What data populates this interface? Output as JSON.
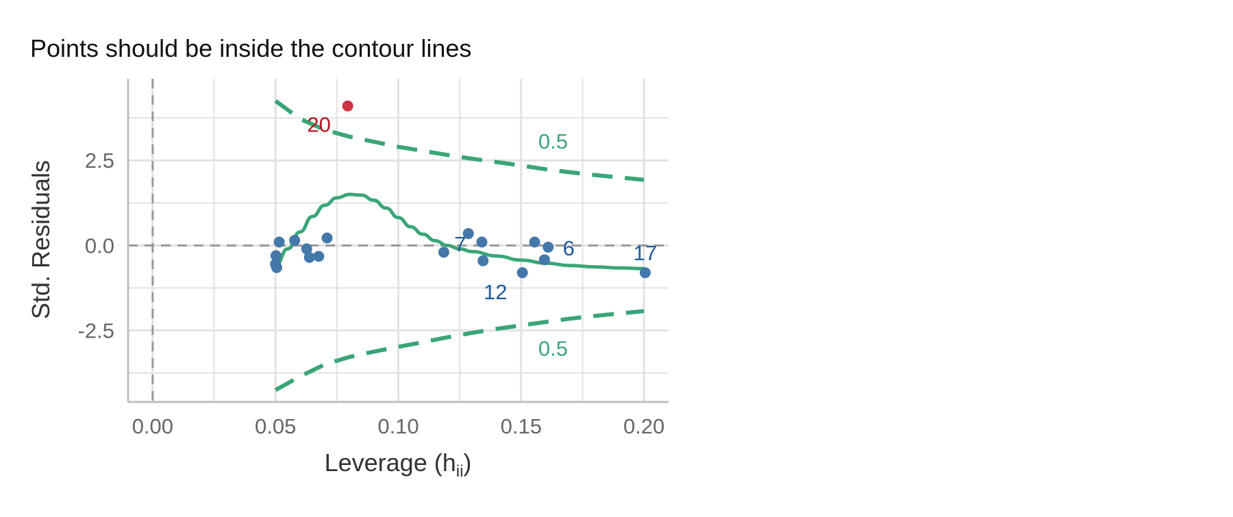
{
  "chart_data": {
    "type": "scatter",
    "title": "Points should be inside the contour lines",
    "xlabel": "Leverage (h",
    "xlabel_subscript": "ii",
    "xlabel_close": ")",
    "ylabel": "Std. Residuals",
    "xlim": [
      -0.01,
      0.21
    ],
    "ylim": [
      -4.6,
      4.9
    ],
    "x_ticks": [
      0.0,
      0.05,
      0.1,
      0.15,
      0.2
    ],
    "x_tick_labels": [
      "0.00",
      "0.05",
      "0.10",
      "0.15",
      "0.20"
    ],
    "y_ticks": [
      -2.5,
      0.0,
      2.5
    ],
    "y_tick_labels": [
      "-2.5",
      "0.0",
      "2.5"
    ],
    "grid": true,
    "reference_lines": [
      {
        "orientation": "horizontal",
        "value": 0.0,
        "style": "dashed"
      },
      {
        "orientation": "vertical",
        "value": 0.0,
        "style": "dashed"
      }
    ],
    "points": [
      {
        "x": 0.0794,
        "y": 4.1,
        "label": "20",
        "influential": true
      },
      {
        "x": 0.0515,
        "y": 0.1
      },
      {
        "x": 0.0502,
        "y": -0.3
      },
      {
        "x": 0.05,
        "y": -0.55
      },
      {
        "x": 0.0505,
        "y": -0.65
      },
      {
        "x": 0.0578,
        "y": 0.15
      },
      {
        "x": 0.0627,
        "y": -0.1
      },
      {
        "x": 0.0638,
        "y": -0.35
      },
      {
        "x": 0.0676,
        "y": -0.32
      },
      {
        "x": 0.071,
        "y": 0.22
      },
      {
        "x": 0.1185,
        "y": -0.2
      },
      {
        "x": 0.1285,
        "y": 0.35,
        "label": "7"
      },
      {
        "x": 0.134,
        "y": 0.1
      },
      {
        "x": 0.1345,
        "y": -0.45,
        "label": "12"
      },
      {
        "x": 0.1505,
        "y": -0.8
      },
      {
        "x": 0.1555,
        "y": 0.1
      },
      {
        "x": 0.1595,
        "y": -0.42
      },
      {
        "x": 0.161,
        "y": -0.05,
        "label": "6"
      },
      {
        "x": 0.2005,
        "y": -0.8,
        "label": "17"
      }
    ],
    "smooth_fit": {
      "x": [
        0.05,
        0.055,
        0.06,
        0.065,
        0.07,
        0.075,
        0.08,
        0.085,
        0.09,
        0.095,
        0.1,
        0.105,
        0.11,
        0.115,
        0.12,
        0.125,
        0.13,
        0.14,
        0.15,
        0.16,
        0.17,
        0.18,
        0.19,
        0.2
      ],
      "y": [
        -0.6,
        -0.1,
        0.4,
        0.85,
        1.18,
        1.4,
        1.5,
        1.48,
        1.33,
        1.1,
        0.82,
        0.55,
        0.33,
        0.14,
        0.0,
        -0.1,
        -0.18,
        -0.31,
        -0.43,
        -0.52,
        -0.59,
        -0.63,
        -0.66,
        -0.68
      ]
    },
    "contours": [
      {
        "label": "0.5",
        "x": [
          0.05,
          0.06,
          0.07,
          0.08,
          0.09,
          0.1,
          0.11,
          0.12,
          0.13,
          0.14,
          0.15,
          0.16,
          0.17,
          0.18,
          0.19,
          0.2
        ],
        "y": [
          4.25,
          3.72,
          3.4,
          3.2,
          3.05,
          2.9,
          2.78,
          2.66,
          2.55,
          2.45,
          2.35,
          2.24,
          2.15,
          2.07,
          2.0,
          1.93
        ]
      },
      {
        "label": "0.5",
        "x": [
          0.05,
          0.06,
          0.07,
          0.08,
          0.09,
          0.1,
          0.11,
          0.12,
          0.13,
          0.14,
          0.15,
          0.16,
          0.17,
          0.18,
          0.19,
          0.2
        ],
        "y": [
          -4.25,
          -3.85,
          -3.5,
          -3.28,
          -3.12,
          -2.98,
          -2.84,
          -2.7,
          -2.57,
          -2.45,
          -2.35,
          -2.25,
          -2.15,
          -2.07,
          -2.0,
          -1.93
        ]
      }
    ],
    "colors": {
      "points": "#4477AA",
      "labels": "#1F5A99",
      "influential": "#CC3344",
      "influential_label": "#BB1122",
      "fit": "#3AA577",
      "grid": "#E2E2E2",
      "axis": "#BFBFBF",
      "refline": "#999999",
      "tick_text": "#666666",
      "axis_title": "#333333"
    }
  }
}
